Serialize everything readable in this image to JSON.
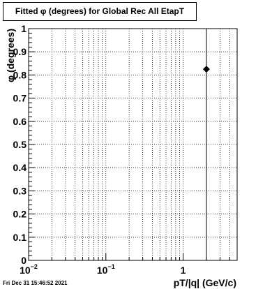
{
  "chart_data": {
    "type": "scatter",
    "title": "Fitted φ (degrees) for Global Rec All EtapT",
    "xlabel": "pT/|q| (GeV/c)",
    "ylabel": "φ (degrees)",
    "x_scale": "log",
    "xlim": [
      0.01,
      5
    ],
    "ylim": [
      0,
      1
    ],
    "grid": true,
    "x_major_ticks": [
      {
        "value": 0.01,
        "base": "10",
        "exp": "−2"
      },
      {
        "value": 0.1,
        "base": "10",
        "exp": "−1"
      },
      {
        "value": 1,
        "base": "1",
        "exp": ""
      }
    ],
    "y_ticks": [
      "0",
      "0.1",
      "0.2",
      "0.3",
      "0.4",
      "0.5",
      "0.6",
      "0.7",
      "0.8",
      "0.9",
      "1"
    ],
    "points": [
      {
        "x": 2,
        "y": 0.825,
        "y_err_low": 0.825,
        "y_err_high": 0.175
      }
    ]
  },
  "timestamp": "Fri Dec 31 15:46:52 2021"
}
